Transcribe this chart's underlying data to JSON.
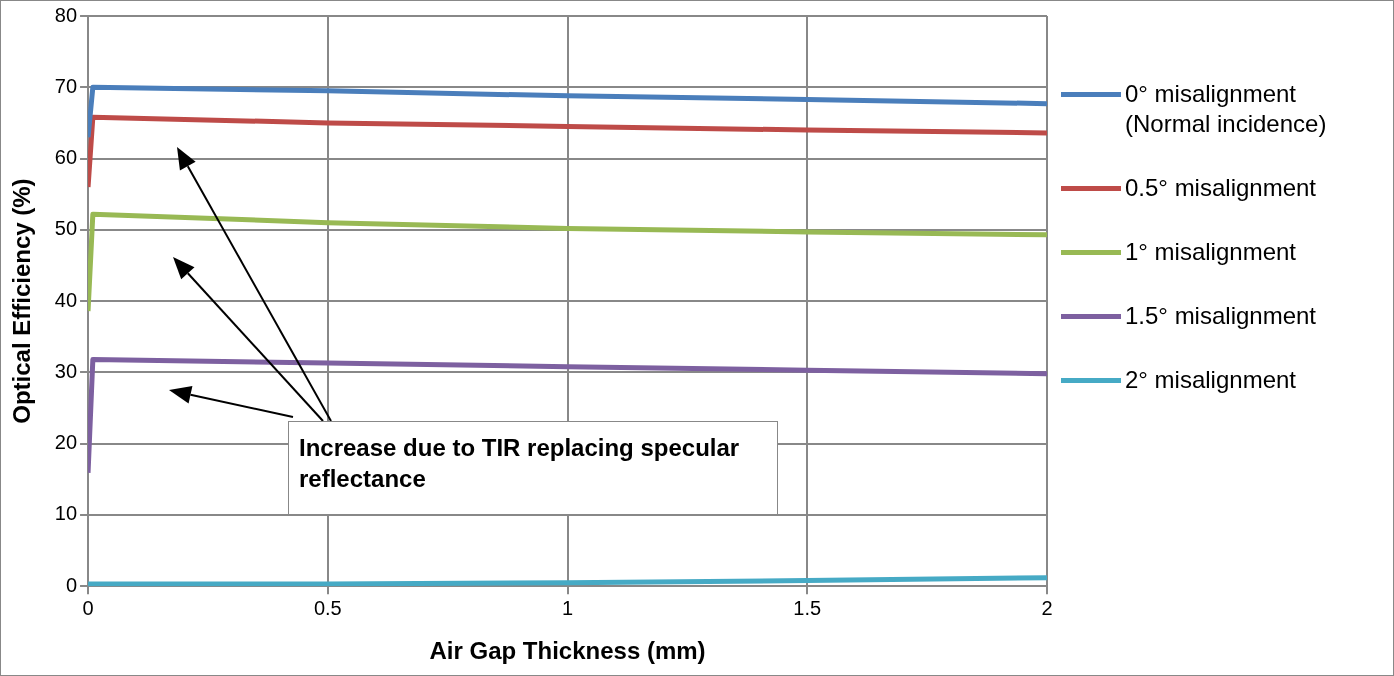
{
  "chart_data": {
    "type": "line",
    "xlabel": "Air Gap Thickness (mm)",
    "ylabel": "Optical Efficiency (%)",
    "xlim": [
      0,
      2
    ],
    "xticks": [
      0,
      0.5,
      1,
      1.5,
      2
    ],
    "ylim": [
      0,
      80
    ],
    "yticks": [
      0,
      10,
      20,
      30,
      40,
      50,
      60,
      70,
      80
    ],
    "grid": true,
    "legend": "right",
    "marker": "none",
    "line_style": "solid",
    "annotations": [
      "Increase due to TIR replacing specular reflectance"
    ],
    "series": [
      {
        "name": "0° misalignment (Normal incidence)",
        "color": "#4a7ebb",
        "x": [
          0,
          0.01,
          0.5,
          1,
          1.5,
          2
        ],
        "values": [
          63,
          70,
          69.5,
          68.8,
          68.3,
          67.7
        ]
      },
      {
        "name": "0.5° misalignment",
        "color": "#be4b48",
        "x": [
          0,
          0.01,
          0.5,
          1,
          1.5,
          2
        ],
        "values": [
          56,
          65.8,
          65,
          64.5,
          64,
          63.6
        ]
      },
      {
        "name": "1° misalignment",
        "color": "#98b954",
        "x": [
          0,
          0.01,
          0.5,
          1,
          1.5,
          2
        ],
        "values": [
          38.6,
          52.2,
          51,
          50.2,
          49.7,
          49.3
        ]
      },
      {
        "name": "1.5° misalignment",
        "color": "#7d60a0",
        "x": [
          0,
          0.01,
          0.5,
          1,
          1.5,
          2
        ],
        "values": [
          15.9,
          31.8,
          31.3,
          30.8,
          30.3,
          29.8
        ]
      },
      {
        "name": "2° misalignment",
        "color": "#46aac5",
        "x": [
          0,
          0.01,
          0.5,
          1,
          1.5,
          2
        ],
        "values": [
          0.3,
          0.3,
          0.3,
          0.5,
          0.8,
          1.2
        ]
      }
    ]
  }
}
